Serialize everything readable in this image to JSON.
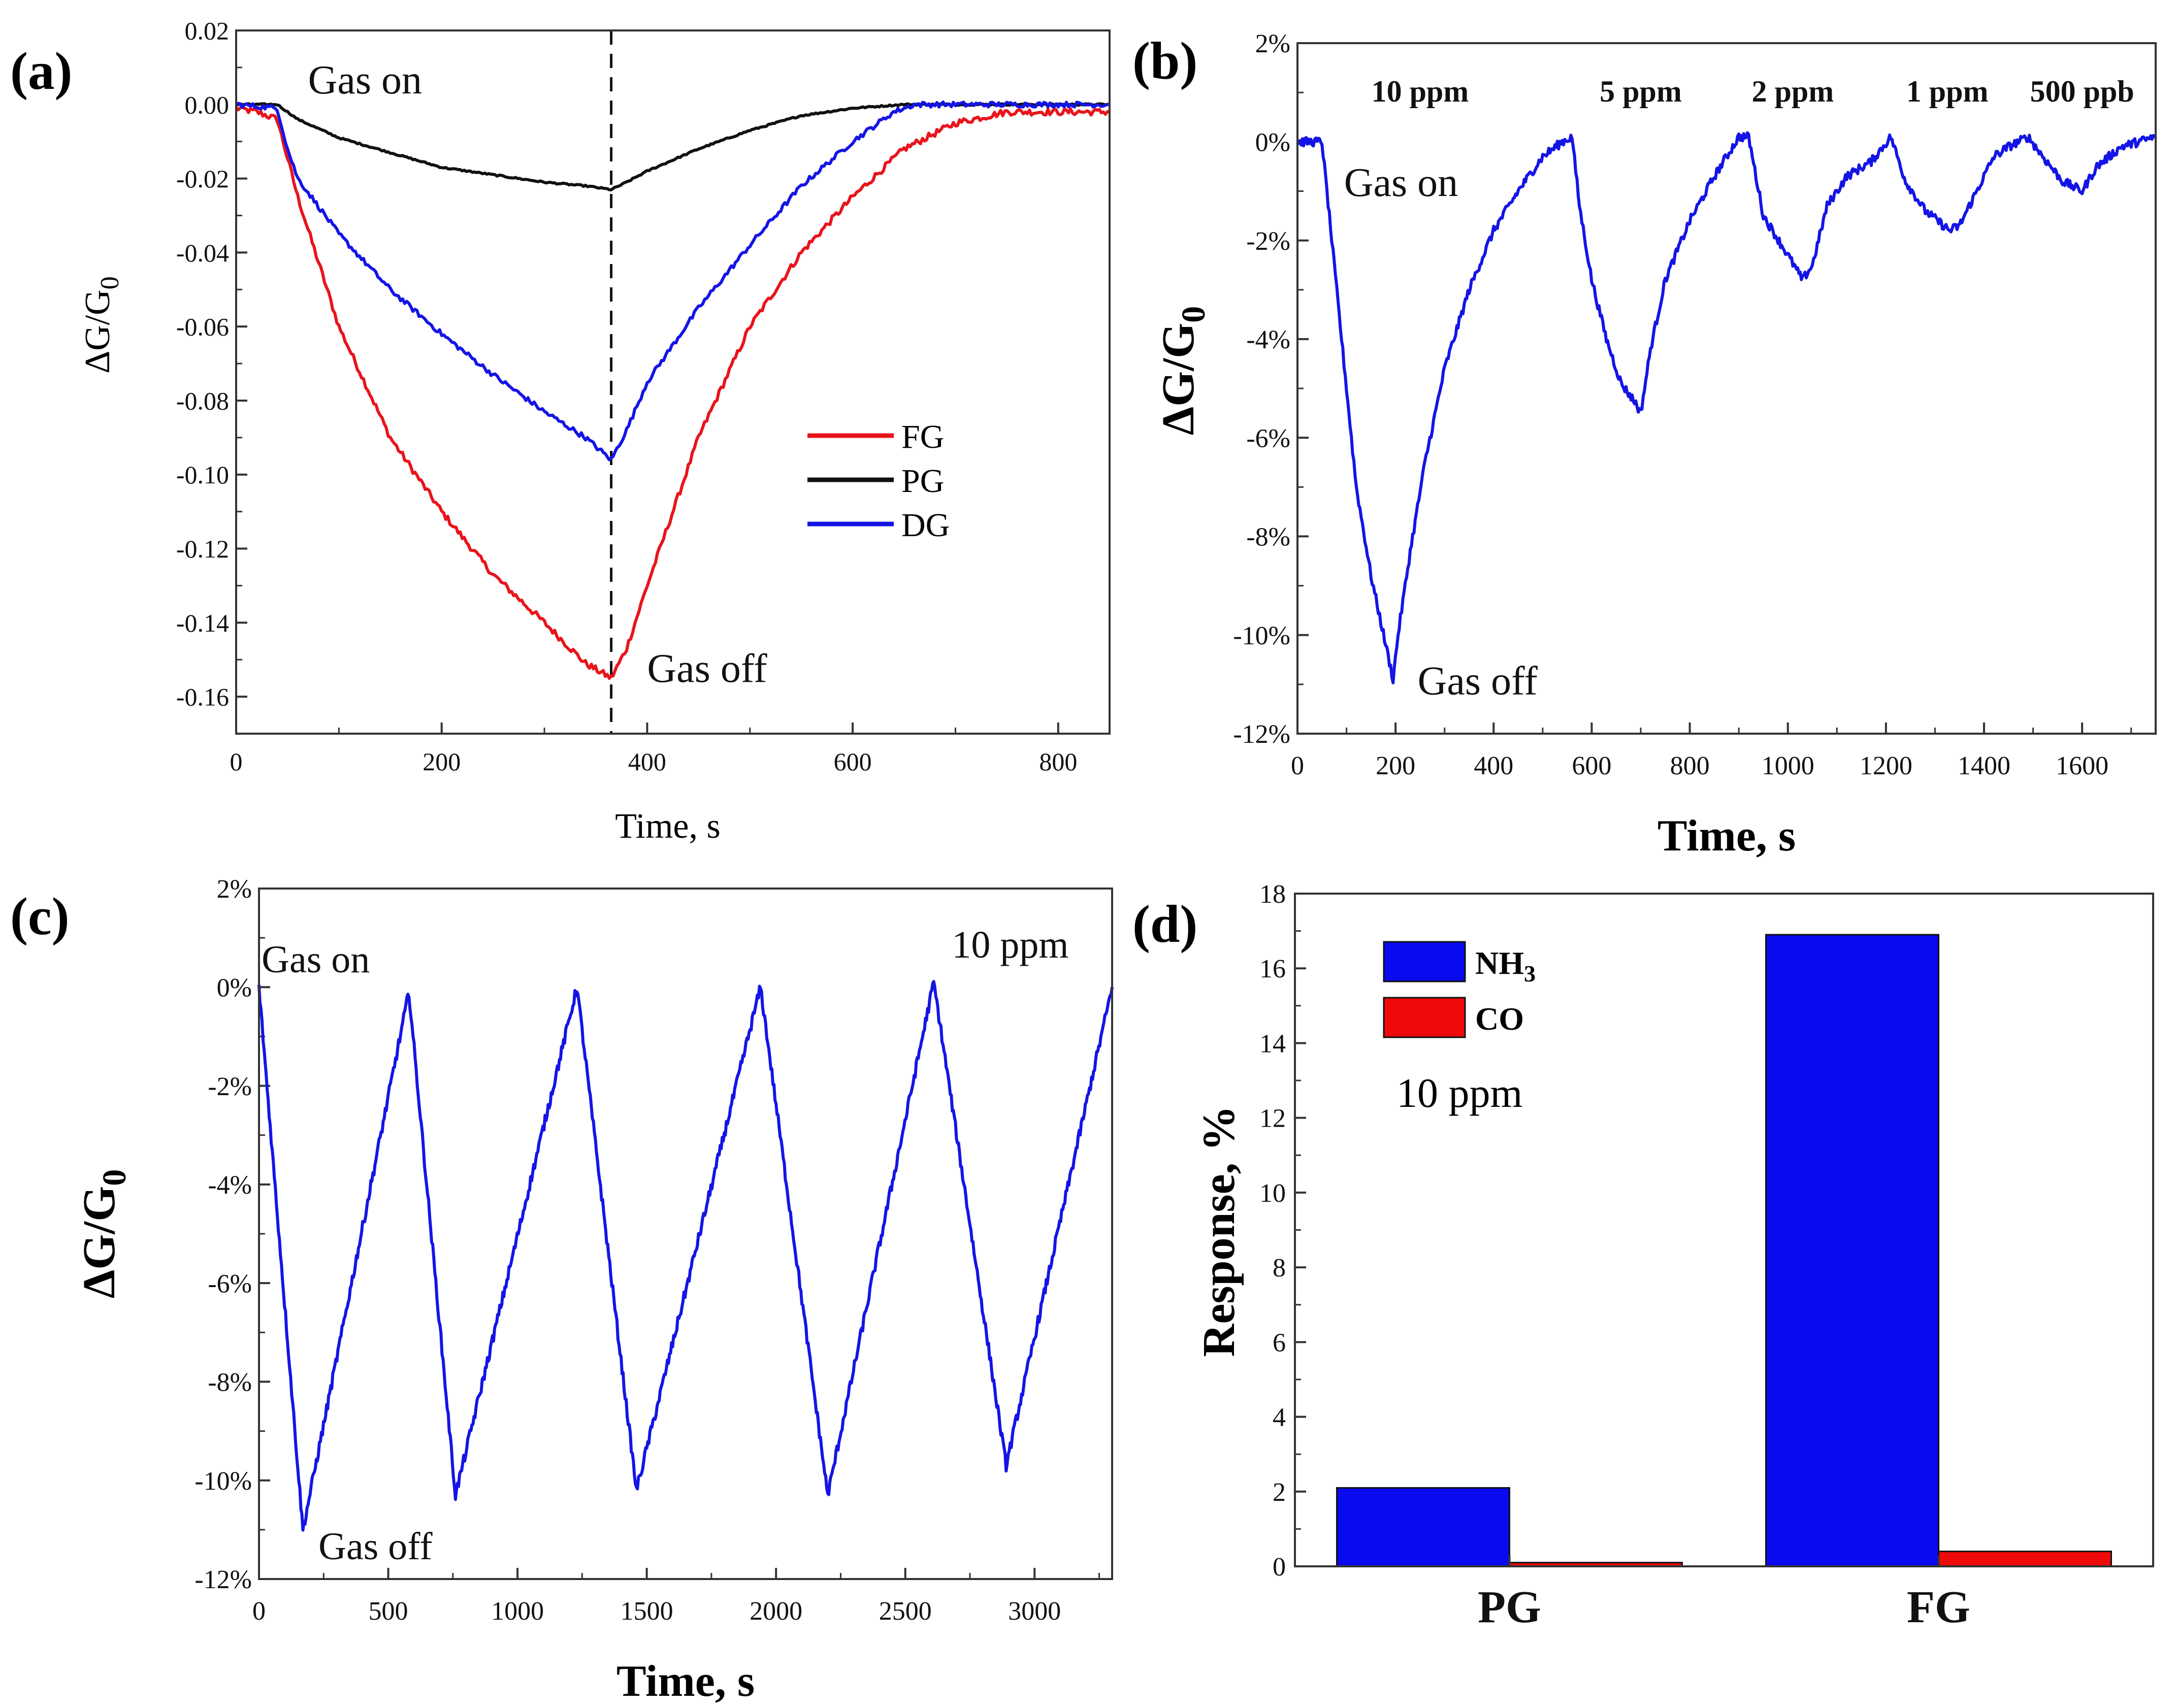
{
  "chart_data": [
    {
      "panel_label": "(a)",
      "type": "line",
      "xlabel": "Time, s",
      "ylabel": "ΔG/G",
      "ylabel_sub": "0",
      "xlim": [
        0,
        850
      ],
      "ylim": [
        -0.17,
        0.02
      ],
      "xticks": [
        "0",
        "200",
        "400",
        "600",
        "800"
      ],
      "xtick_values": [
        0,
        200,
        400,
        600,
        800
      ],
      "yticks": [
        "0.02",
        "0.00",
        "-0.02",
        "-0.04",
        "-0.06",
        "-0.08",
        "-0.10",
        "-0.12",
        "-0.14",
        "-0.16"
      ],
      "ytick_values": [
        0.02,
        0,
        -0.02,
        -0.04,
        -0.06,
        -0.08,
        -0.1,
        -0.12,
        -0.14,
        -0.16
      ],
      "vline_x": 365,
      "annotations": [
        {
          "text": "Gas on",
          "x": 70,
          "y": 0.003
        },
        {
          "text": "Gas off",
          "x": 400,
          "y": -0.156
        }
      ],
      "legend": {
        "position": "center-right",
        "entries": [
          "FG",
          "PG",
          "DG"
        ]
      },
      "series": [
        {
          "name": "FG",
          "color": "#e8141b",
          "x": [
            0,
            20,
            40,
            60,
            100,
            150,
            200,
            250,
            300,
            340,
            365,
            380,
            400,
            450,
            500,
            550,
            600,
            650,
            700,
            750,
            800,
            850
          ],
          "values": [
            -0.001,
            -0.002,
            -0.004,
            -0.025,
            -0.06,
            -0.09,
            -0.11,
            -0.127,
            -0.14,
            -0.151,
            -0.155,
            -0.147,
            -0.13,
            -0.09,
            -0.06,
            -0.04,
            -0.025,
            -0.012,
            -0.005,
            -0.002,
            -0.002,
            -0.002
          ]
        },
        {
          "name": "PG",
          "color": "#111111",
          "x": [
            0,
            40,
            60,
            100,
            150,
            200,
            250,
            300,
            340,
            365,
            380,
            400,
            450,
            500,
            550,
            600,
            650,
            700,
            750,
            800,
            850
          ],
          "values": [
            0,
            0,
            -0.004,
            -0.009,
            -0.013,
            -0.017,
            -0.019,
            -0.021,
            -0.022,
            -0.023,
            -0.021,
            -0.018,
            -0.012,
            -0.007,
            -0.003,
            -0.001,
            0,
            0,
            0,
            0,
            0
          ]
        },
        {
          "name": "DG",
          "color": "#1414e6",
          "x": [
            0,
            40,
            50,
            60,
            100,
            150,
            200,
            250,
            300,
            340,
            365,
            380,
            400,
            450,
            500,
            550,
            600,
            640,
            660,
            700,
            750,
            800,
            850
          ],
          "values": [
            0,
            -0.001,
            -0.012,
            -0.02,
            -0.035,
            -0.05,
            -0.062,
            -0.073,
            -0.083,
            -0.09,
            -0.096,
            -0.088,
            -0.075,
            -0.055,
            -0.038,
            -0.022,
            -0.01,
            -0.002,
            0,
            0,
            0,
            0,
            0
          ]
        }
      ]
    },
    {
      "panel_label": "(b)",
      "type": "line",
      "xlabel": "Time, s",
      "ylabel": "ΔG/G",
      "ylabel_sub": "0",
      "xlim": [
        0,
        1750
      ],
      "ylim": [
        -12,
        2
      ],
      "xticks": [
        "0",
        "200",
        "400",
        "600",
        "800",
        "1000",
        "1200",
        "1400",
        "1600"
      ],
      "xtick_values": [
        0,
        200,
        400,
        600,
        800,
        1000,
        1200,
        1400,
        1600
      ],
      "yticks": [
        "2%",
        "0%",
        "-2%",
        "-4%",
        "-6%",
        "-8%",
        "-10%",
        "-12%"
      ],
      "ytick_values": [
        2,
        0,
        -2,
        -4,
        -6,
        -8,
        -10,
        -12
      ],
      "annotations": [
        {
          "text": "Gas on",
          "x": 95,
          "y": -1.1
        },
        {
          "text": "Gas off",
          "x": 245,
          "y": -11.2
        }
      ],
      "top_labels": [
        {
          "text": "10 ppm",
          "x": 250
        },
        {
          "text": "5 ppm",
          "x": 700
        },
        {
          "text": "2 ppm",
          "x": 1010
        },
        {
          "text": "1 ppm",
          "x": 1325
        },
        {
          "text": "500 ppb",
          "x": 1600
        }
      ],
      "series": [
        {
          "name": "",
          "color": "#1414e6",
          "x": [
            0,
            50,
            60,
            80,
            100,
            120,
            150,
            180,
            195,
            205,
            230,
            260,
            300,
            350,
            400,
            450,
            500,
            540,
            560,
            575,
            600,
            630,
            660,
            690,
            700,
            720,
            750,
            800,
            850,
            900,
            920,
            950,
            1000,
            1030,
            1050,
            1080,
            1120,
            1170,
            1210,
            1240,
            1280,
            1330,
            1350,
            1380,
            1420,
            1450,
            1490,
            1520,
            1560,
            1600,
            1630,
            1680,
            1750
          ],
          "values": [
            0,
            0,
            -1,
            -3,
            -5,
            -7,
            -8.8,
            -10.2,
            -10.9,
            -10,
            -8.3,
            -6.5,
            -4.6,
            -3,
            -1.8,
            -1,
            -0.3,
            0,
            0.1,
            -1.3,
            -2.8,
            -4,
            -4.9,
            -5.3,
            -5.5,
            -4.2,
            -2.8,
            -1.6,
            -0.7,
            0.1,
            0.1,
            -1.5,
            -2.3,
            -2.8,
            -2.5,
            -1.3,
            -0.7,
            -0.4,
            0.1,
            -0.8,
            -1.4,
            -1.8,
            -1.7,
            -1.1,
            -0.3,
            -0.1,
            0.1,
            -0.3,
            -0.8,
            -1.0,
            -0.5,
            -0.1,
            0.1
          ]
        }
      ]
    },
    {
      "panel_label": "(c)",
      "type": "line",
      "xlabel": "Time, s",
      "ylabel": "ΔG/G",
      "ylabel_sub": "0",
      "xlim": [
        0,
        3300
      ],
      "ylim": [
        -12,
        2
      ],
      "xticks": [
        "0",
        "500",
        "1000",
        "1500",
        "2000",
        "2500",
        "3000"
      ],
      "xtick_values": [
        0,
        500,
        1000,
        1500,
        2000,
        2500,
        3000
      ],
      "yticks": [
        "2%",
        "0%",
        "-2%",
        "-4%",
        "-6%",
        "-8%",
        "-10%",
        "-12%"
      ],
      "ytick_values": [
        2,
        0,
        -2,
        -4,
        -6,
        -8,
        -10,
        -12
      ],
      "annotations": [
        {
          "text": "Gas on",
          "x": 10,
          "y": 0.3
        },
        {
          "text": "Gas off",
          "x": 230,
          "y": -11.6
        },
        {
          "text": "10 ppm",
          "x": 2680,
          "y": 0.6
        }
      ],
      "series": [
        {
          "name": "",
          "color": "#1414e6",
          "x": [
            0,
            170,
            580,
            760,
            1230,
            1460,
            1940,
            2200,
            2610,
            2890,
            3300
          ],
          "values": [
            0,
            -11.0,
            -0.1,
            -10.3,
            0,
            -10.2,
            0,
            -10.3,
            0.1,
            -9.7,
            0
          ]
        }
      ]
    },
    {
      "panel_label": "(d)",
      "type": "bar",
      "ylabel": "Response, %",
      "categories": [
        "PG",
        "FG"
      ],
      "ylim": [
        0,
        18
      ],
      "yticks": [
        "0",
        "2",
        "4",
        "6",
        "8",
        "10",
        "12",
        "14",
        "16",
        "18"
      ],
      "ytick_values": [
        0,
        2,
        4,
        6,
        8,
        10,
        12,
        14,
        16,
        18
      ],
      "annotation": "10 ppm",
      "legend": {
        "position": "top-left",
        "entries": [
          {
            "label": "NH",
            "sub": "3"
          },
          {
            "label": "CO",
            "sub": ""
          }
        ]
      },
      "series": [
        {
          "name": "NH3",
          "color": "#0a0aee",
          "values": [
            2.1,
            16.9
          ]
        },
        {
          "name": "CO",
          "color": "#ee0a0a",
          "values": [
            0.1,
            0.4
          ]
        }
      ]
    }
  ]
}
